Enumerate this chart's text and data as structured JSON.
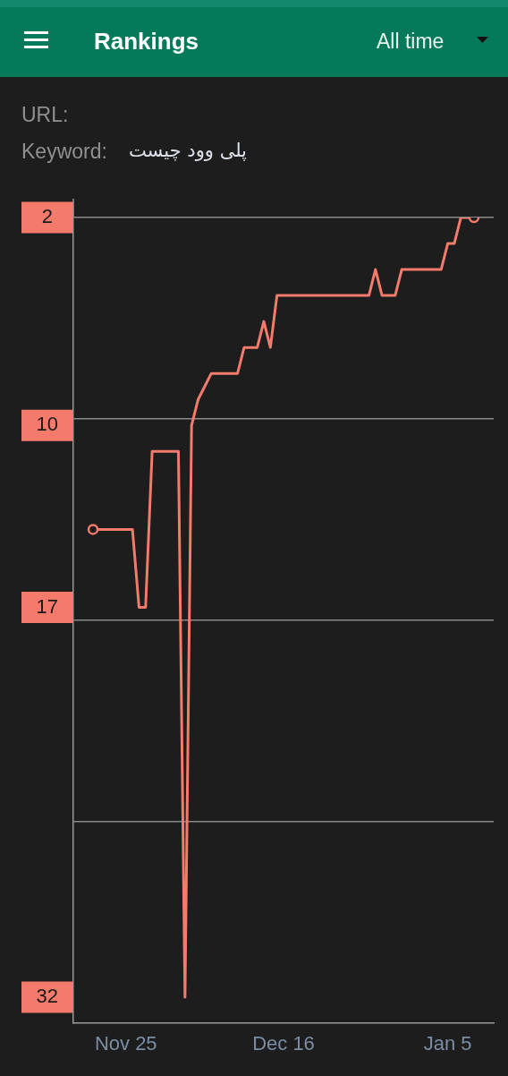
{
  "chart_data": {
    "type": "line",
    "title": "Rankings",
    "annotations": [
      "All time",
      "URL:",
      "Keyword:",
      "پلی وود چیست"
    ],
    "categories": [
      null,
      null,
      null,
      null,
      null,
      "Nov 25",
      null,
      null,
      null,
      null,
      null,
      null,
      null,
      null,
      null,
      null,
      null,
      null,
      null,
      null,
      null,
      null,
      null,
      null,
      null,
      null,
      null,
      null,
      null,
      "Dec 16",
      null,
      null,
      null,
      null,
      null,
      null,
      null,
      null,
      null,
      null,
      null,
      null,
      null,
      null,
      null,
      null,
      null,
      null,
      null,
      null,
      null,
      null,
      null,
      null,
      "Jan 5",
      null,
      null,
      null,
      null
    ],
    "series": [
      {
        "color": "#f47b6c",
        "values": [
          14,
          14,
          14,
          14,
          14,
          14,
          14,
          17,
          17,
          11,
          11,
          11,
          11,
          11,
          32,
          10,
          9,
          8.5,
          8,
          8,
          8,
          8,
          8,
          7,
          7,
          7,
          6,
          7,
          5,
          5,
          5,
          5,
          5,
          5,
          5,
          5,
          5,
          5,
          5,
          5,
          5,
          5,
          5,
          4,
          5,
          5,
          5,
          4,
          4,
          4,
          4,
          4,
          4,
          4,
          3,
          3,
          2,
          2,
          2
        ]
      },
      {
        "type": "scatter",
        "marker": "circle",
        "color": "#f47b6c",
        "values": [
          14,
          null,
          null,
          null,
          null,
          null,
          null,
          null,
          null,
          null,
          null,
          null,
          null,
          null,
          null,
          null,
          null,
          null,
          null,
          null,
          null,
          null,
          null,
          null,
          null,
          null,
          null,
          null,
          null,
          null,
          null,
          null,
          null,
          null,
          null,
          null,
          null,
          null,
          null,
          null,
          null,
          null,
          null,
          null,
          null,
          null,
          null,
          null,
          null,
          null,
          null,
          null,
          null,
          null,
          null,
          null,
          null,
          null,
          2
        ]
      }
    ],
    "ylim": [
      33,
      2
    ],
    "yticks": [
      2,
      {
        "value": 9.75,
        "label": null
      },
      10,
      17,
      {
        "value": 17.5,
        "label": null
      },
      {
        "value": 25.25,
        "label": null
      },
      32
    ],
    "grid": "y"
  }
}
